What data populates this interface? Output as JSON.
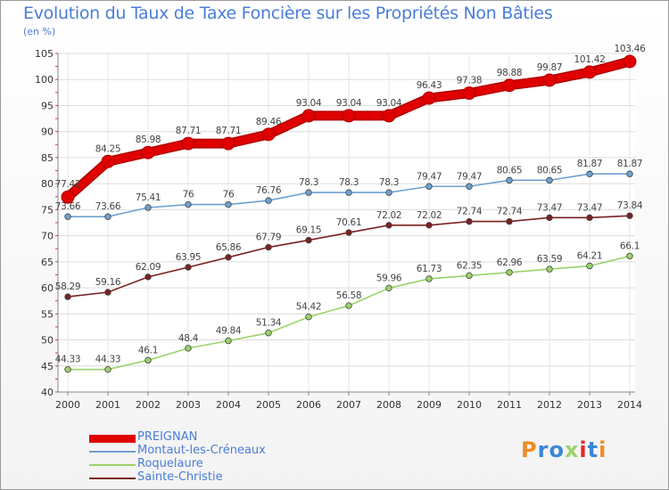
{
  "chart_data": {
    "type": "line",
    "title": "Evolution du Taux de Taxe Foncière sur les Propriétés Non Bâties",
    "unit_label": "(en %)",
    "x": [
      "2000",
      "2001",
      "2002",
      "2003",
      "2004",
      "2005",
      "2006",
      "2007",
      "2008",
      "2009",
      "2010",
      "2011",
      "2012",
      "2013",
      "2014"
    ],
    "ylim": [
      40,
      105
    ],
    "yticks": [
      40,
      45,
      50,
      55,
      60,
      65,
      70,
      75,
      80,
      85,
      90,
      95,
      100,
      105
    ],
    "grid": true,
    "legend_position": "bottom-left",
    "series": [
      {
        "name": "PREIGNAN",
        "color": "#e00000",
        "emphasis": true,
        "values": [
          77.42,
          84.25,
          85.98,
          87.71,
          87.71,
          89.46,
          93.04,
          93.04,
          93.04,
          96.43,
          97.38,
          98.88,
          99.87,
          101.42,
          103.46
        ],
        "labels": [
          "77.42",
          "84.25",
          "85.98",
          "87.71",
          "87.71",
          "89.46",
          "93.04",
          "93.04",
          "93.04",
          "96.43",
          "97.38",
          "98.88",
          "99.87",
          "101.42",
          "103.46"
        ]
      },
      {
        "name": "Montaut-les-Créneaux",
        "color": "#6fa1d0",
        "values": [
          73.66,
          73.66,
          75.41,
          76,
          76,
          76.76,
          78.3,
          78.3,
          78.3,
          79.47,
          79.47,
          80.65,
          80.65,
          81.87,
          81.87
        ],
        "labels": [
          "73.66",
          "73.66",
          "75.41",
          "76",
          "76",
          "76.76",
          "78.3",
          "78.3",
          "78.3",
          "79.47",
          "79.47",
          "80.65",
          "80.65",
          "81.87",
          "81.87"
        ]
      },
      {
        "name": "Roquelaure",
        "color": "#9bd36a",
        "values": [
          44.33,
          44.33,
          46.1,
          48.4,
          49.84,
          51.34,
          54.42,
          56.58,
          59.96,
          61.73,
          62.35,
          62.96,
          63.59,
          64.21,
          66.1
        ],
        "labels": [
          "44.33",
          "44.33",
          "46.1",
          "48.4",
          "49.84",
          "51.34",
          "54.42",
          "56.58",
          "59.96",
          "61.73",
          "62.35",
          "62.96",
          "63.59",
          "64.21",
          "66.1"
        ]
      },
      {
        "name": "Sainte-Christie",
        "color": "#7a2020",
        "values": [
          58.29,
          59.16,
          62.09,
          63.95,
          65.86,
          67.79,
          69.15,
          70.61,
          72.02,
          72.02,
          72.74,
          72.74,
          73.47,
          73.47,
          73.84
        ],
        "labels": [
          "58.29",
          "59.16",
          "62.09",
          "63.95",
          "65.86",
          "67.79",
          "69.15",
          "70.61",
          "72.02",
          "72.02",
          "72.74",
          "72.74",
          "73.47",
          "73.47",
          "73.84"
        ]
      }
    ]
  },
  "legend": {
    "items": [
      {
        "label": "PREIGNAN",
        "color": "#e00000",
        "thickness": 9
      },
      {
        "label": "Montaut-les-Créneaux",
        "color": "#6fa1d0",
        "thickness": 2
      },
      {
        "label": "Roquelaure",
        "color": "#9bd36a",
        "thickness": 2
      },
      {
        "label": "Sainte-Christie",
        "color": "#7a2020",
        "thickness": 2
      }
    ]
  },
  "logo": {
    "text": "Proxiti",
    "letter_colors": [
      "#f08a24",
      "#3a86d8",
      "#3a86d8",
      "#9bd36a",
      "#e02a2a",
      "#3a86d8",
      "#f08a24"
    ]
  }
}
